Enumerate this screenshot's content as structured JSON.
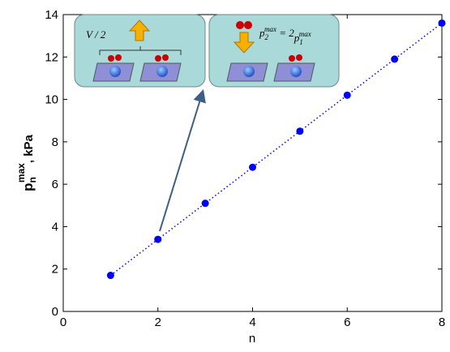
{
  "chart_data": {
    "type": "scatter",
    "xlabel": "n",
    "ylabel": {
      "base": "p",
      "sub": "n",
      "sup": "max",
      "unit": ", kPa"
    },
    "x": [
      1,
      2,
      3,
      4,
      5,
      6,
      7,
      8
    ],
    "series": [
      {
        "color": "#0000ff",
        "values": [
          1.7,
          3.4,
          5.1,
          6.8,
          8.5,
          10.2,
          11.9,
          13.6
        ]
      }
    ],
    "xlim": [
      0,
      8
    ],
    "xticks": [
      0,
      2,
      4,
      6,
      8
    ],
    "ylim": [
      0,
      14
    ],
    "yticks": [
      0,
      2,
      4,
      6,
      8,
      10,
      12,
      14
    ],
    "insets": {
      "left": "V / 2",
      "right": [
        {
          "text": "p"
        },
        {
          "sub": "2"
        },
        {
          "sup": "max"
        },
        {
          "text": " = 2"
        },
        {
          "text": "p"
        },
        {
          "sub": "1"
        },
        {
          "sup": "max"
        }
      ]
    }
  }
}
